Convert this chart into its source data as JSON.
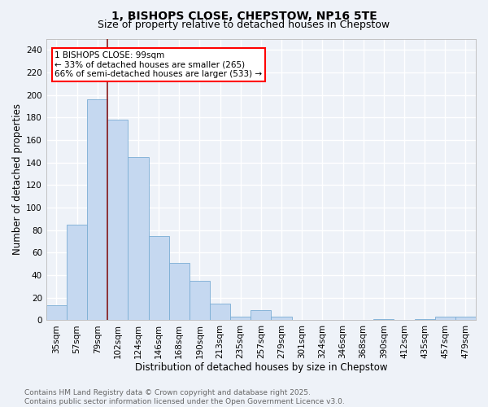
{
  "title": "1, BISHOPS CLOSE, CHEPSTOW, NP16 5TE",
  "subtitle": "Size of property relative to detached houses in Chepstow",
  "xlabel": "Distribution of detached houses by size in Chepstow",
  "ylabel": "Number of detached properties",
  "footer_line1": "Contains HM Land Registry data © Crown copyright and database right 2025.",
  "footer_line2": "Contains public sector information licensed under the Open Government Licence v3.0.",
  "categories": [
    "35sqm",
    "57sqm",
    "79sqm",
    "102sqm",
    "124sqm",
    "146sqm",
    "168sqm",
    "190sqm",
    "213sqm",
    "235sqm",
    "257sqm",
    "279sqm",
    "301sqm",
    "324sqm",
    "346sqm",
    "368sqm",
    "390sqm",
    "412sqm",
    "435sqm",
    "457sqm",
    "479sqm"
  ],
  "values": [
    13,
    85,
    196,
    178,
    145,
    75,
    51,
    35,
    15,
    3,
    9,
    3,
    0,
    0,
    0,
    0,
    1,
    0,
    1,
    3,
    3
  ],
  "bar_color": "#c5d8f0",
  "bar_edgecolor": "#7aadd4",
  "vline_x": 2.5,
  "annotation_text": "1 BISHOPS CLOSE: 99sqm\n← 33% of detached houses are smaller (265)\n66% of semi-detached houses are larger (533) →",
  "annotation_box_color": "white",
  "annotation_box_edgecolor": "red",
  "vline_color": "#8b1a1a",
  "ylim": [
    0,
    250
  ],
  "yticks": [
    0,
    20,
    40,
    60,
    80,
    100,
    120,
    140,
    160,
    180,
    200,
    220,
    240
  ],
  "background_color": "#eef2f8",
  "grid_color": "white",
  "title_fontsize": 10,
  "subtitle_fontsize": 9,
  "axis_label_fontsize": 8.5,
  "tick_fontsize": 7.5,
  "annotation_fontsize": 7.5,
  "footer_fontsize": 6.5
}
